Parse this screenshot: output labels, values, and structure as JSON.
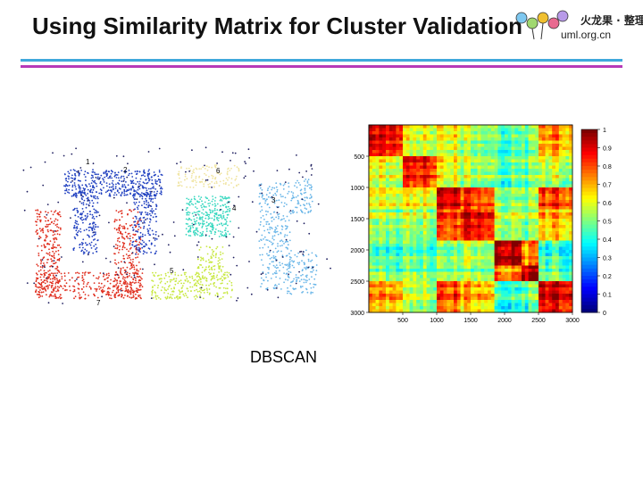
{
  "title": "Using Similarity Matrix for Cluster Validation",
  "logo": {
    "main": "火龙果 · 整理",
    "sub": "uml.org.cn"
  },
  "rule_colors": [
    "#3fa8dc",
    "#b63ab8"
  ],
  "caption": "DBSCAN",
  "scatter": {
    "cluster_labels": [
      "1",
      "2",
      "3",
      "4",
      "5",
      "6",
      "7"
    ],
    "colors": {
      "c1": "#2040c0",
      "c2": "#2040c0",
      "c3": "#6ab6e8",
      "c4": "#38d8c0",
      "c5": "#c8e840",
      "c6": "#f0e4a0",
      "c7": "#e03020",
      "noise": "#202060"
    }
  },
  "heatmap": {
    "y_ticks": [
      "500",
      "1000",
      "1500",
      "2000",
      "2500",
      "3000"
    ],
    "x_ticks": [
      "500",
      "1000",
      "1500",
      "2000",
      "2500",
      "3000"
    ],
    "colorbar_ticks": [
      "1",
      "0.9",
      "0.8",
      "0.7",
      "0.6",
      "0.5",
      "0.4",
      "0.3",
      "0.2",
      "0.1",
      "0"
    ]
  }
}
